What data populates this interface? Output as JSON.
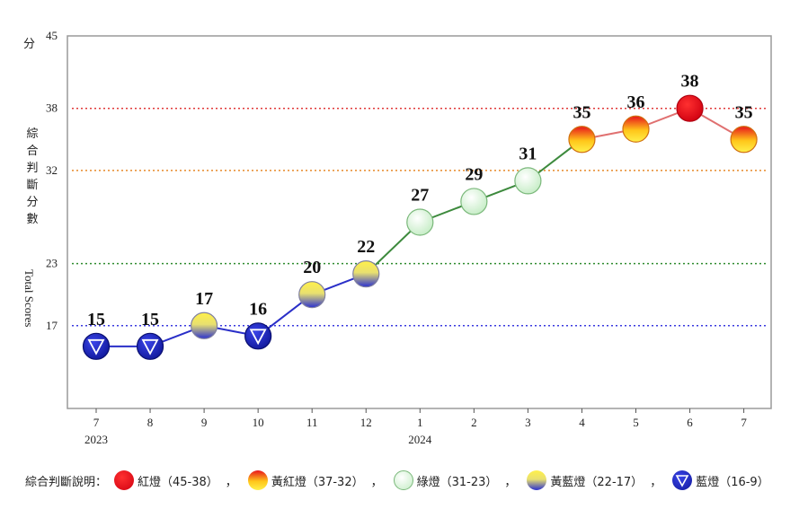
{
  "unit": "分",
  "ylabel_cn": "綜合判斷分數",
  "ylabel_en": "Total Scores",
  "legend": {
    "title": "綜合判斷說明：",
    "separator": "，",
    "items": [
      {
        "key": "red",
        "label": "紅燈（45-38）"
      },
      {
        "key": "yellow-red",
        "label": "黃紅燈（37-32）"
      },
      {
        "key": "green",
        "label": "綠燈（31-23）"
      },
      {
        "key": "yellow-blue",
        "label": "黃藍燈（22-17）"
      },
      {
        "key": "blue",
        "label": "藍燈（16-9）"
      }
    ]
  },
  "colors": {
    "red": "#e8141c",
    "yellow-red": "#f7a11a",
    "green": "#d9f2d9",
    "yellow-blue": "#f2e23a",
    "blue": "#1a24c8",
    "line_blue": "#2a2fc8",
    "line_green": "#3d8a3d",
    "line_red": "#e07070",
    "ref_red": "#e03a3a",
    "ref_orange": "#e88a2a",
    "ref_green": "#2e8b2e",
    "ref_blue": "#3a3adf"
  },
  "chart_data": {
    "type": "line",
    "categories": [
      "7",
      "8",
      "9",
      "10",
      "11",
      "12",
      "1",
      "2",
      "3",
      "4",
      "5",
      "6",
      "7"
    ],
    "year_labels": [
      {
        "index": 0,
        "text": "2023"
      },
      {
        "index": 6,
        "text": "2024"
      }
    ],
    "values": [
      15,
      15,
      17,
      16,
      20,
      22,
      27,
      29,
      31,
      35,
      36,
      38,
      35
    ],
    "lights": [
      "blue",
      "blue",
      "yellow-blue",
      "blue",
      "yellow-blue",
      "yellow-blue",
      "green",
      "green",
      "green",
      "yellow-red",
      "yellow-red",
      "red",
      "yellow-red"
    ],
    "y_ticks": [
      17,
      23,
      32,
      38,
      45
    ],
    "ylim": [
      9,
      45
    ],
    "reference_lines": [
      {
        "value": 38,
        "color_key": "ref_red"
      },
      {
        "value": 32,
        "color_key": "ref_orange"
      },
      {
        "value": 23,
        "color_key": "ref_green"
      },
      {
        "value": 17,
        "color_key": "ref_blue"
      }
    ],
    "grid": false
  }
}
